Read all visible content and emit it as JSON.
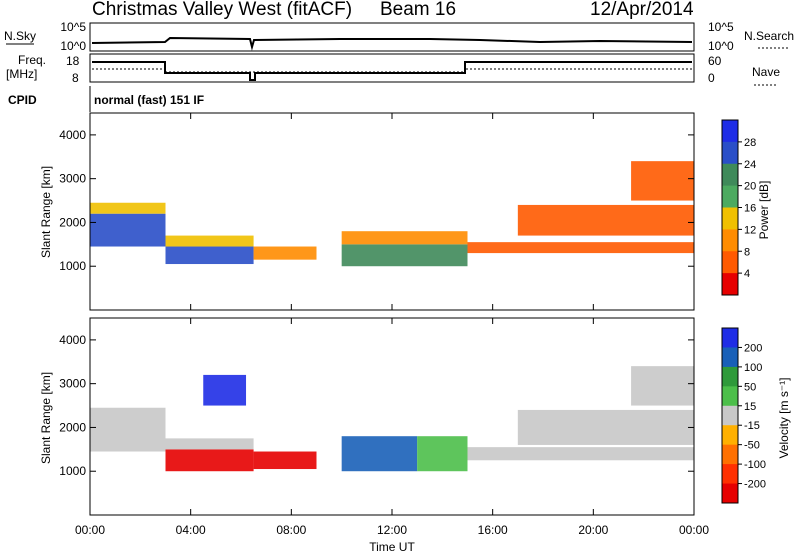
{
  "header": {
    "station": "Christmas Valley West (fitACF)",
    "beam": "Beam 16",
    "date": "12/Apr/2014"
  },
  "strip": {
    "nsky_label": "N.Sky",
    "nsky_ticks": [
      "10^5",
      "10^0"
    ],
    "nsearch_label": "N.Search",
    "nsearch_ticks": [
      "10^5",
      "10^0"
    ],
    "freq_label_line1": "Freq.",
    "freq_label_line2": "[MHz]",
    "freq_ticks": [
      "18",
      "8"
    ],
    "nave_label": "Nave",
    "nave_ticks": [
      "60",
      "0"
    ],
    "cpid_label": "CPID",
    "cpid_value": "normal (fast) 151 IF"
  },
  "colors": {
    "power_scale": [
      "#1f2de6",
      "#2a4fc8",
      "#3f8a5a",
      "#4caa60",
      "#f0c000",
      "#ff8c00",
      "#ff5a00",
      "#e60000"
    ],
    "velocity_scale": [
      "#1f2de6",
      "#1960b8",
      "#2f9a3a",
      "#4cbf4a",
      "#c8c8c8",
      "#ffb000",
      "#ff7000",
      "#ff3000",
      "#e60000"
    ]
  },
  "chart_data": [
    {
      "type": "heatmap",
      "name": "power",
      "ylabel": "Slant Range [km]",
      "yticks": [
        "1000",
        "2000",
        "3000",
        "4000"
      ],
      "ylim": [
        0,
        4500
      ],
      "xlim": [
        0,
        24
      ],
      "colorbar_label": "Power [dB]",
      "colorbar_ticks": [
        "28",
        "24",
        "20",
        "16",
        "12",
        "8",
        "4"
      ],
      "colorbar_range": [
        0,
        32
      ],
      "regions": [
        {
          "t0": 0.0,
          "t1": 3.0,
          "r0": 1450,
          "r1": 2200,
          "value": 26
        },
        {
          "t0": 0.0,
          "t1": 3.0,
          "r0": 2200,
          "r1": 2450,
          "value": 14
        },
        {
          "t0": 3.0,
          "t1": 6.5,
          "r0": 1050,
          "r1": 1450,
          "value": 27
        },
        {
          "t0": 3.0,
          "t1": 6.5,
          "r0": 1450,
          "r1": 1700,
          "value": 13
        },
        {
          "t0": 6.5,
          "t1": 9.0,
          "r0": 1150,
          "r1": 1450,
          "value": 9
        },
        {
          "t0": 10.0,
          "t1": 15.0,
          "r0": 1000,
          "r1": 1500,
          "value": 20
        },
        {
          "t0": 10.0,
          "t1": 15.0,
          "r0": 1500,
          "r1": 1800,
          "value": 10
        },
        {
          "t0": 15.0,
          "t1": 24.0,
          "r0": 1300,
          "r1": 1550,
          "value": 5
        },
        {
          "t0": 17.0,
          "t1": 24.0,
          "r0": 1700,
          "r1": 2400,
          "value": 4
        },
        {
          "t0": 21.5,
          "t1": 24.0,
          "r0": 2500,
          "r1": 3400,
          "value": 6
        }
      ]
    },
    {
      "type": "heatmap",
      "name": "velocity",
      "ylabel": "Slant Range [km]",
      "yticks": [
        "1000",
        "2000",
        "3000",
        "4000"
      ],
      "ylim": [
        0,
        4500
      ],
      "xlim": [
        0,
        24
      ],
      "xlabel": "Time UT",
      "xticks": [
        "00:00",
        "04:00",
        "08:00",
        "12:00",
        "16:00",
        "20:00",
        "00:00"
      ],
      "colorbar_label": "Velocity [m s⁻¹]",
      "colorbar_ticks": [
        "200",
        "100",
        "50",
        "15",
        "-15",
        "-50",
        "-100",
        "-200"
      ],
      "colorbar_range": [
        -250,
        250
      ],
      "regions": [
        {
          "t0": 0.0,
          "t1": 3.0,
          "r0": 1450,
          "r1": 2450,
          "value": 0
        },
        {
          "t0": 3.0,
          "t1": 6.5,
          "r0": 1000,
          "r1": 1500,
          "value": -210
        },
        {
          "t0": 3.0,
          "t1": 6.5,
          "r0": 1500,
          "r1": 1750,
          "value": 0
        },
        {
          "t0": 6.5,
          "t1": 9.0,
          "r0": 1050,
          "r1": 1450,
          "value": -220
        },
        {
          "t0": 4.5,
          "t1": 6.2,
          "r0": 2500,
          "r1": 3200,
          "value": 220
        },
        {
          "t0": 10.0,
          "t1": 13.0,
          "r0": 1000,
          "r1": 1800,
          "value": 180
        },
        {
          "t0": 13.0,
          "t1": 15.0,
          "r0": 1000,
          "r1": 1800,
          "value": 60
        },
        {
          "t0": 15.0,
          "t1": 24.0,
          "r0": 1250,
          "r1": 1550,
          "value": 0
        },
        {
          "t0": 17.0,
          "t1": 24.0,
          "r0": 1600,
          "r1": 2400,
          "value": 0
        },
        {
          "t0": 21.5,
          "t1": 24.0,
          "r0": 2500,
          "r1": 3400,
          "value": -5
        }
      ]
    }
  ]
}
